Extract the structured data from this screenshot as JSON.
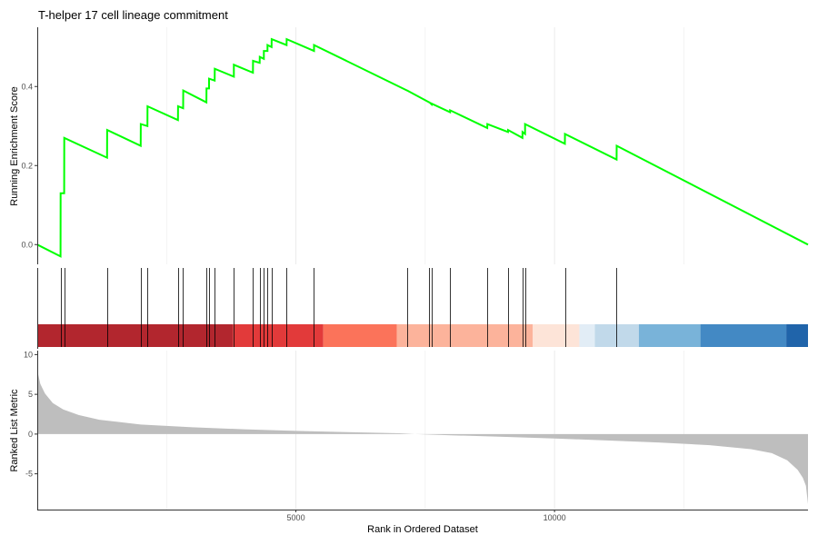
{
  "chart_data": {
    "type": "line",
    "title": "T-helper 17 cell lineage commitment",
    "xlabel": "Rank in Ordered Dataset",
    "x_ticks": [
      5000,
      10000
    ],
    "xlim": [
      0,
      14900
    ],
    "colors": {
      "curve": "#00ff00",
      "hit_line": "#000000",
      "metric_fill": "#bebebe",
      "grid": "#ebebeb",
      "axis": "#333333"
    },
    "panels": {
      "enrichment": {
        "ylabel": "Running Enrichment Score",
        "y_ticks": [
          {
            "value": 0.0,
            "label": "0.0"
          },
          {
            "value": 0.2,
            "label": "0.2"
          },
          {
            "value": 0.4,
            "label": "0.4"
          }
        ],
        "ylim": [
          -0.05,
          0.55
        ],
        "points": [
          [
            0,
            0.0
          ],
          [
            450,
            -0.03
          ],
          [
            451,
            0.13
          ],
          [
            520,
            0.13
          ],
          [
            521,
            0.27
          ],
          [
            1350,
            0.22
          ],
          [
            1351,
            0.29
          ],
          [
            2000,
            0.25
          ],
          [
            2001,
            0.305
          ],
          [
            2130,
            0.3
          ],
          [
            2131,
            0.35
          ],
          [
            2720,
            0.315
          ],
          [
            2721,
            0.35
          ],
          [
            2820,
            0.345
          ],
          [
            2821,
            0.39
          ],
          [
            3270,
            0.36
          ],
          [
            3271,
            0.395
          ],
          [
            3320,
            0.395
          ],
          [
            3321,
            0.42
          ],
          [
            3430,
            0.415
          ],
          [
            3431,
            0.445
          ],
          [
            3800,
            0.425
          ],
          [
            3801,
            0.455
          ],
          [
            4170,
            0.435
          ],
          [
            4171,
            0.465
          ],
          [
            4300,
            0.46
          ],
          [
            4301,
            0.475
          ],
          [
            4380,
            0.47
          ],
          [
            4381,
            0.49
          ],
          [
            4450,
            0.49
          ],
          [
            4451,
            0.505
          ],
          [
            4530,
            0.5
          ],
          [
            4531,
            0.52
          ],
          [
            4820,
            0.505
          ],
          [
            4821,
            0.52
          ],
          [
            5350,
            0.49
          ],
          [
            5351,
            0.505
          ],
          [
            7150,
            0.39
          ],
          [
            7151,
            0.39
          ],
          [
            7580,
            0.36
          ],
          [
            7581,
            0.36
          ],
          [
            7620,
            0.355
          ],
          [
            7621,
            0.357
          ],
          [
            7980,
            0.335
          ],
          [
            7981,
            0.34
          ],
          [
            8700,
            0.295
          ],
          [
            8701,
            0.305
          ],
          [
            9100,
            0.285
          ],
          [
            9101,
            0.29
          ],
          [
            9380,
            0.27
          ],
          [
            9381,
            0.285
          ],
          [
            9430,
            0.28
          ],
          [
            9431,
            0.305
          ],
          [
            10200,
            0.255
          ],
          [
            10201,
            0.28
          ],
          [
            11200,
            0.215
          ],
          [
            11201,
            0.25
          ],
          [
            14900,
            0.0
          ]
        ]
      },
      "hits": {
        "positions": [
          450,
          520,
          1350,
          2000,
          2130,
          2720,
          2820,
          3270,
          3320,
          3430,
          3800,
          4170,
          4300,
          4380,
          4450,
          4530,
          4820,
          5350,
          7150,
          7580,
          7620,
          7980,
          8700,
          9100,
          9380,
          9430,
          10200,
          11200
        ],
        "color_bands": [
          {
            "start": 0,
            "end": 3780,
            "color": "#b2262e"
          },
          {
            "start": 3780,
            "end": 5530,
            "color": "#e23a3a"
          },
          {
            "start": 5530,
            "end": 6950,
            "color": "#fb735a"
          },
          {
            "start": 6950,
            "end": 9580,
            "color": "#fcb39b"
          },
          {
            "start": 9580,
            "end": 10480,
            "color": "#fde4d8"
          },
          {
            "start": 10480,
            "end": 10780,
            "color": "#e2edf6"
          },
          {
            "start": 10780,
            "end": 11630,
            "color": "#c1d9ea"
          },
          {
            "start": 11630,
            "end": 12820,
            "color": "#79b3d9"
          },
          {
            "start": 12820,
            "end": 14480,
            "color": "#4389c4"
          },
          {
            "start": 14480,
            "end": 14900,
            "color": "#2064aa"
          }
        ]
      },
      "ranked_metric": {
        "ylabel": "Ranked List Metric",
        "y_ticks": [
          {
            "value": -5,
            "label": "-5"
          },
          {
            "value": 0,
            "label": "0"
          },
          {
            "value": 5,
            "label": "5"
          },
          {
            "value": 10,
            "label": "10"
          }
        ],
        "ylim": [
          -9.5,
          10.5
        ],
        "points": [
          [
            0,
            8.0
          ],
          [
            60,
            6.3
          ],
          [
            150,
            5.1
          ],
          [
            300,
            3.9
          ],
          [
            500,
            3.1
          ],
          [
            800,
            2.4
          ],
          [
            1200,
            1.8
          ],
          [
            2000,
            1.2
          ],
          [
            3000,
            0.85
          ],
          [
            4000,
            0.6
          ],
          [
            5000,
            0.4
          ],
          [
            6000,
            0.25
          ],
          [
            7000,
            0.1
          ],
          [
            7300,
            0.0
          ],
          [
            8000,
            -0.15
          ],
          [
            9000,
            -0.35
          ],
          [
            10000,
            -0.55
          ],
          [
            11000,
            -0.8
          ],
          [
            12000,
            -1.05
          ],
          [
            13000,
            -1.4
          ],
          [
            13800,
            -1.9
          ],
          [
            14200,
            -2.4
          ],
          [
            14500,
            -3.3
          ],
          [
            14700,
            -4.5
          ],
          [
            14800,
            -5.5
          ],
          [
            14860,
            -6.5
          ],
          [
            14900,
            -8.8
          ]
        ]
      }
    }
  }
}
